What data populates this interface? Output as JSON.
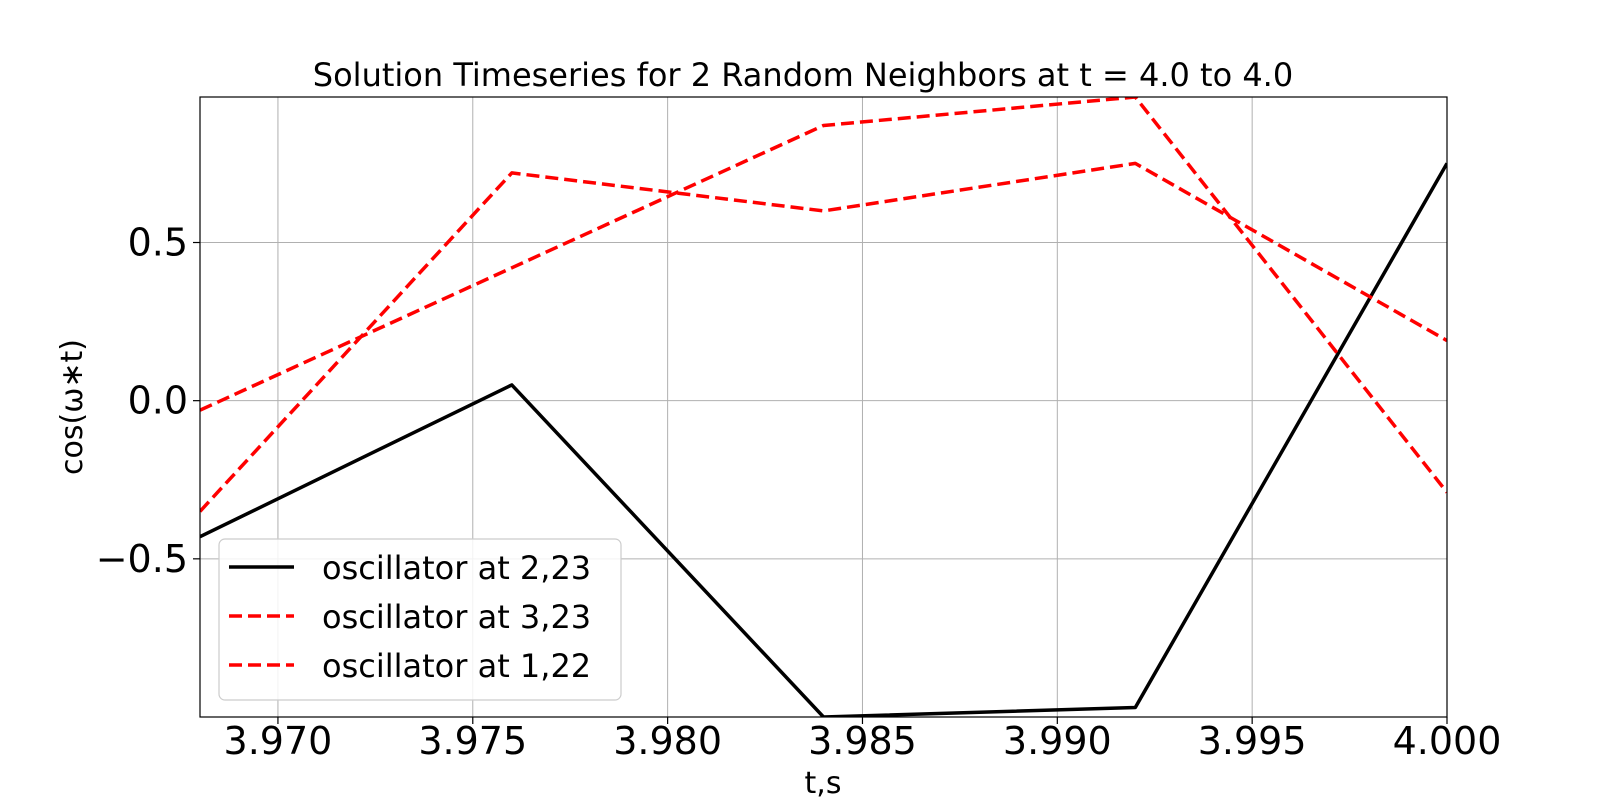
{
  "chart_data": {
    "type": "line",
    "title": "Solution Timeseries for 2 Random Neighbors at t = 4.0 to 4.0",
    "xlabel": "t,s",
    "ylabel": "cos(ω∗t)",
    "xlim": [
      3.968,
      4.0
    ],
    "ylim": [
      -1.0,
      0.96
    ],
    "x_ticks": [
      3.97,
      3.975,
      3.98,
      3.985,
      3.99,
      3.995,
      4.0
    ],
    "x_tick_labels": [
      "3.970",
      "3.975",
      "3.980",
      "3.985",
      "3.990",
      "3.995",
      "4.000"
    ],
    "y_ticks": [
      -0.5,
      0.0,
      0.5
    ],
    "y_tick_labels": [
      "−0.5",
      "0.0",
      "0.5"
    ],
    "grid": true,
    "legend_position": "lower-left",
    "x": [
      3.968,
      3.976,
      3.984,
      3.992,
      4.0
    ],
    "series": [
      {
        "name": "oscillator at 2,23",
        "values": [
          -0.43,
          0.05,
          -1.0,
          -0.97,
          0.75
        ],
        "color": "#000000",
        "style": "solid"
      },
      {
        "name": "oscillator at 3,23",
        "values": [
          -0.35,
          0.72,
          0.6,
          0.75,
          0.19
        ],
        "color": "#ff0000",
        "style": "dashed"
      },
      {
        "name": "oscillator at 1,22",
        "values": [
          -0.03,
          0.42,
          0.87,
          0.96,
          -0.29
        ],
        "color": "#ff0000",
        "style": "dashed"
      }
    ]
  }
}
